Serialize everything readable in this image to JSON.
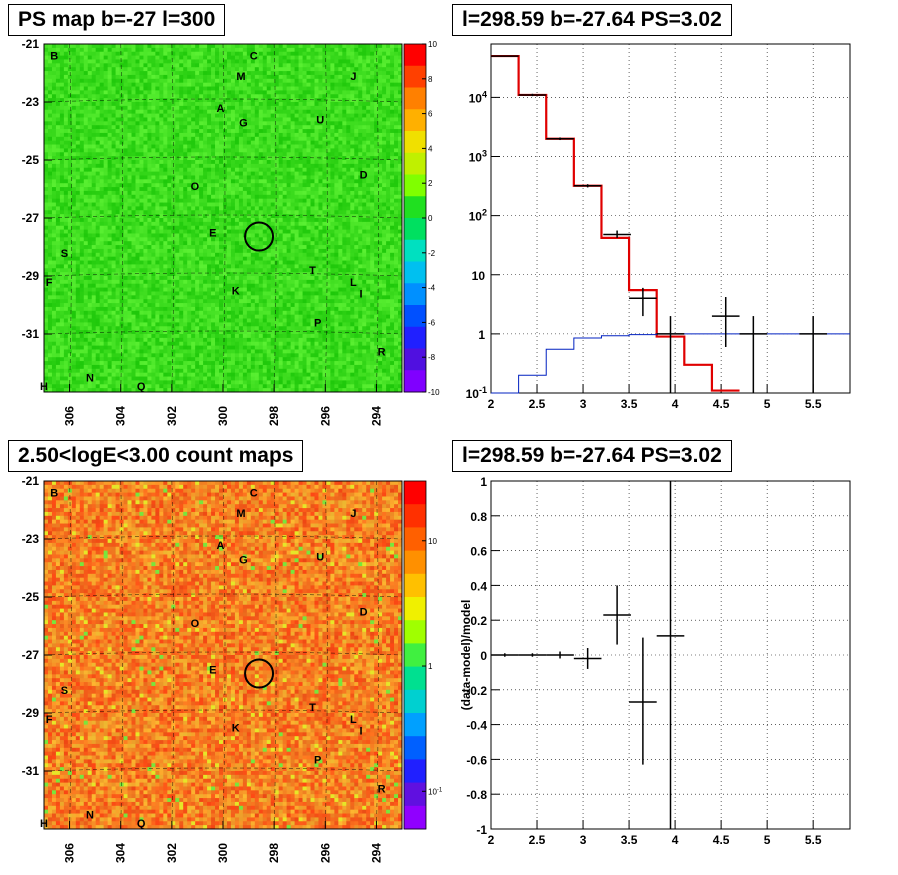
{
  "panels": {
    "tl_title": "PS map b=-27 l=300",
    "tr_title": "l=298.59 b=-27.64 PS=3.02",
    "bl_title": "2.50<logE<3.00 count maps",
    "br_title": "l=298.59 b=-27.64 PS=3.02"
  },
  "colors": {
    "data": "#000000",
    "model": "#e00000",
    "background": "#0020c0"
  },
  "chart_data": [
    {
      "type": "heatmap",
      "title": "PS map b=-27 l=300",
      "x_ticks": [
        306,
        304,
        302,
        300,
        298,
        296,
        294
      ],
      "y_ticks": [
        -21,
        -23,
        -25,
        -27,
        -29,
        -31
      ],
      "xlim": [
        307,
        293
      ],
      "ylim": [
        -33,
        -21
      ],
      "colorbar": {
        "min": -10,
        "max": 10,
        "ticks": [
          10,
          8,
          6,
          4,
          2,
          0,
          -2,
          -4,
          -6,
          -8,
          -10
        ]
      },
      "point_labels": [
        "B",
        "C",
        "M",
        "J",
        "A",
        "G",
        "U",
        "D",
        "O",
        "E",
        "S",
        "T",
        "F",
        "K",
        "L",
        "I",
        "P",
        "R",
        "H",
        "N",
        "Q"
      ],
      "marker": {
        "l": 298.59,
        "b": -27.64
      }
    },
    {
      "type": "line",
      "title": "l=298.59 b=-27.64 PS=3.02",
      "yscale": "log",
      "xlim": [
        2,
        5.9
      ],
      "ylim": [
        0.1,
        80000
      ],
      "x_ticks": [
        2,
        2.5,
        3,
        3.5,
        4,
        4.5,
        5,
        5.5
      ],
      "y_ticks": [
        "10^{-1}",
        "1",
        "10",
        "10^{2}",
        "10^{3}",
        "10^{4}"
      ],
      "series": [
        {
          "style": "step",
          "color": "#e00000",
          "bin_edges": [
            2,
            2.3,
            2.6,
            2.9,
            3.2,
            3.5,
            3.8,
            4.1,
            4.4,
            4.7
          ],
          "values": [
            50000,
            11000,
            2000,
            320,
            42,
            5.5,
            0.9,
            0.3,
            0.11
          ]
        },
        {
          "style": "step",
          "color": "#0020c0",
          "bin_edges": [
            2,
            2.3,
            2.6,
            2.9,
            3.2,
            3.5,
            3.8,
            4.1,
            4.4,
            4.7,
            5.0,
            5.3,
            5.9
          ],
          "values": [
            0.09,
            0.2,
            0.55,
            0.85,
            0.93,
            0.97,
            1.0,
            1.0,
            1.0,
            1.0,
            1.0,
            1.0
          ]
        },
        {
          "style": "errorbars",
          "color": "#000000",
          "points": [
            {
              "x": 2.15,
              "y": 50000,
              "xerr": 0.15,
              "lo": 49000,
              "hi": 51000
            },
            {
              "x": 2.45,
              "y": 11000,
              "xerr": 0.15,
              "lo": 10500,
              "hi": 11500
            },
            {
              "x": 2.75,
              "y": 2000,
              "xerr": 0.15,
              "lo": 1900,
              "hi": 2100
            },
            {
              "x": 3.05,
              "y": 320,
              "xerr": 0.15,
              "lo": 300,
              "hi": 340
            },
            {
              "x": 3.37,
              "y": 48,
              "xerr": 0.15,
              "lo": 42,
              "hi": 56
            },
            {
              "x": 3.65,
              "y": 4,
              "xerr": 0.15,
              "lo": 2,
              "hi": 6
            },
            {
              "x": 3.95,
              "y": 1,
              "xerr": 0.15,
              "lo": 0.1,
              "hi": 2
            },
            {
              "x": 4.55,
              "y": 2,
              "xerr": 0.15,
              "lo": 0.6,
              "hi": 4.2
            },
            {
              "x": 4.85,
              "y": 1,
              "xerr": 0.15,
              "lo": 0.1,
              "hi": 2
            },
            {
              "x": 5.5,
              "y": 1,
              "xerr": 0.15,
              "lo": 0.1,
              "hi": 2
            }
          ]
        }
      ]
    },
    {
      "type": "heatmap",
      "title": "2.50<logE<3.00 count maps",
      "x_ticks": [
        306,
        304,
        302,
        300,
        298,
        296,
        294
      ],
      "y_ticks": [
        -21,
        -23,
        -25,
        -27,
        -29,
        -31
      ],
      "xlim": [
        307,
        293
      ],
      "ylim": [
        -33,
        -21
      ],
      "colorbar": {
        "scale": "log",
        "min": 0.05,
        "max": 30,
        "ticks": [
          "10",
          "1",
          "10^{-1}"
        ]
      },
      "point_labels": [
        "B",
        "C",
        "M",
        "J",
        "A",
        "G",
        "U",
        "D",
        "O",
        "E",
        "S",
        "T",
        "F",
        "K",
        "L",
        "I",
        "P",
        "R",
        "H",
        "N",
        "Q"
      ],
      "marker": {
        "l": 298.59,
        "b": -27.64
      }
    },
    {
      "type": "scatter",
      "title": "l=298.59 b=-27.64 PS=3.02",
      "ylabel": "(data-model)/model",
      "xlim": [
        2,
        5.9
      ],
      "ylim": [
        -1,
        1
      ],
      "x_ticks": [
        2,
        2.5,
        3,
        3.5,
        4,
        4.5,
        5,
        5.5
      ],
      "y_ticks": [
        -1,
        -0.8,
        -0.6,
        -0.4,
        -0.2,
        0,
        0.2,
        0.4,
        0.6,
        0.8,
        1
      ],
      "points": [
        {
          "x": 2.15,
          "y": 0,
          "xerr": 0.15,
          "lo": -0.01,
          "hi": 0.01
        },
        {
          "x": 2.45,
          "y": 0,
          "xerr": 0.15,
          "lo": -0.01,
          "hi": 0.01
        },
        {
          "x": 2.75,
          "y": 0,
          "xerr": 0.15,
          "lo": -0.02,
          "hi": 0.02
        },
        {
          "x": 3.05,
          "y": -0.02,
          "xerr": 0.15,
          "lo": -0.08,
          "hi": 0.04
        },
        {
          "x": 3.37,
          "y": 0.23,
          "xerr": 0.15,
          "lo": 0.06,
          "hi": 0.4
        },
        {
          "x": 3.65,
          "y": -0.27,
          "xerr": 0.15,
          "lo": -0.63,
          "hi": 0.1
        },
        {
          "x": 3.95,
          "y": 0.11,
          "xerr": 0.15,
          "lo": -1,
          "hi": 1
        }
      ]
    }
  ]
}
